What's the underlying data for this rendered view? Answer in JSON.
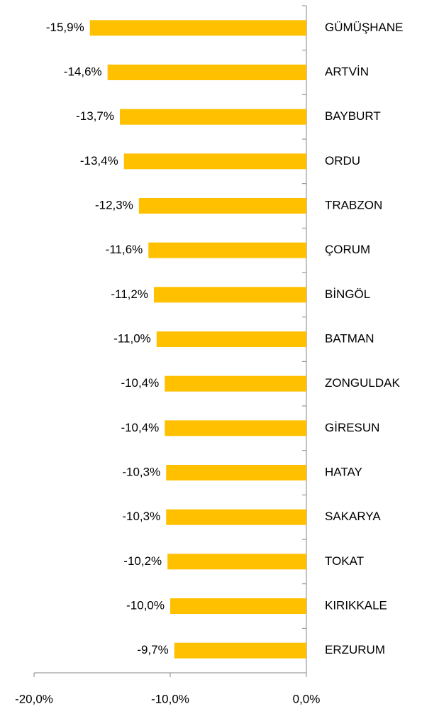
{
  "chart_data": {
    "type": "bar",
    "orientation": "horizontal",
    "color": "#ffc000",
    "categories": [
      "GÜMÜŞHANE",
      "ARTVİN",
      "BAYBURT",
      "ORDU",
      "TRABZON",
      "ÇORUM",
      "BİNGÖL",
      "BATMAN",
      "ZONGULDAK",
      "GİRESUN",
      "HATAY",
      "SAKARYA",
      "TOKAT",
      "KIRIKKALE",
      "ERZURUM"
    ],
    "values": [
      -15.9,
      -14.6,
      -13.7,
      -13.4,
      -12.3,
      -11.6,
      -11.2,
      -11.0,
      -10.4,
      -10.4,
      -10.3,
      -10.3,
      -10.2,
      -10.0,
      -9.7
    ],
    "value_labels": [
      "-15,9%",
      "-14,6%",
      "-13,7%",
      "-13,4%",
      "-12,3%",
      "-11,6%",
      "-11,2%",
      "-11,0%",
      "-10,4%",
      "-10,4%",
      "-10,3%",
      "-10,3%",
      "-10,2%",
      "-10,0%",
      "-9,7%"
    ],
    "xlim": [
      -20,
      0
    ],
    "xticks": [
      {
        "value": -20,
        "label": "-20,0%"
      },
      {
        "value": -10,
        "label": "-10,0%"
      },
      {
        "value": 0,
        "label": "0,0%"
      }
    ],
    "grid": false
  }
}
